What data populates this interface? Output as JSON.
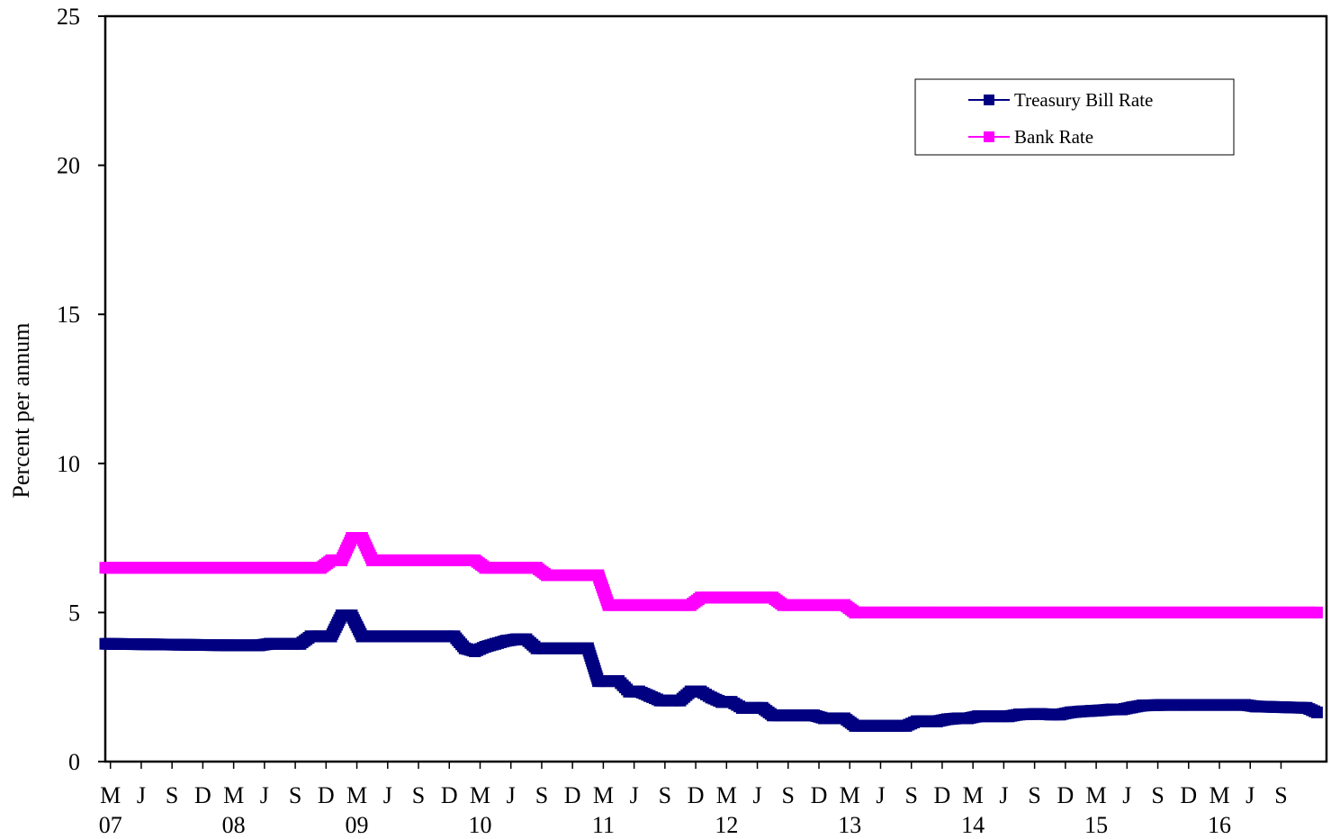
{
  "chart_data": {
    "type": "line",
    "title": "",
    "xlabel": "",
    "ylabel": "Percent per annum",
    "ylim": [
      0,
      25
    ],
    "yticks": [
      0,
      5,
      10,
      15,
      20,
      25
    ],
    "x_range": [
      "2007-03",
      "2016-12"
    ],
    "x_tick_month_labels": [
      "M",
      "J",
      "S",
      "D",
      "M",
      "J",
      "S",
      "D",
      "M",
      "J",
      "S",
      "D",
      "M",
      "J",
      "S",
      "D",
      "M",
      "J",
      "S",
      "D",
      "M",
      "J",
      "S",
      "D",
      "M",
      "J",
      "S",
      "D",
      "M",
      "J",
      "S",
      "D",
      "M",
      "J",
      "S",
      "D",
      "M",
      "J",
      "S"
    ],
    "x_tick_year_labels": [
      "07",
      "08",
      "09",
      "10",
      "11",
      "12",
      "13",
      "14",
      "15",
      "16"
    ],
    "grid": false,
    "legend_position": "top-right",
    "series": [
      {
        "name": "Treasury Bill Rate",
        "color": "#000080",
        "marker": "square",
        "points": [
          [
            "2007-03",
            3.95
          ],
          [
            "2008-03",
            3.9
          ],
          [
            "2008-06",
            3.9
          ],
          [
            "2008-07",
            3.95
          ],
          [
            "2008-10",
            3.95
          ],
          [
            "2008-11",
            4.2
          ],
          [
            "2009-01",
            4.2
          ],
          [
            "2009-02",
            4.9
          ],
          [
            "2009-03",
            4.9
          ],
          [
            "2009-04",
            4.2
          ],
          [
            "2010-01",
            4.2
          ],
          [
            "2010-02",
            3.8
          ],
          [
            "2010-03",
            3.7
          ],
          [
            "2010-04",
            3.85
          ],
          [
            "2010-05",
            3.95
          ],
          [
            "2010-06",
            4.05
          ],
          [
            "2010-07",
            4.1
          ],
          [
            "2010-08",
            4.1
          ],
          [
            "2010-09",
            3.8
          ],
          [
            "2011-02",
            3.8
          ],
          [
            "2011-03",
            2.7
          ],
          [
            "2011-05",
            2.7
          ],
          [
            "2011-06",
            2.35
          ],
          [
            "2011-07",
            2.35
          ],
          [
            "2011-08",
            2.2
          ],
          [
            "2011-09",
            2.05
          ],
          [
            "2011-11",
            2.05
          ],
          [
            "2011-12",
            2.35
          ],
          [
            "2012-01",
            2.35
          ],
          [
            "2012-02",
            2.15
          ],
          [
            "2012-03",
            2.0
          ],
          [
            "2012-04",
            2.0
          ],
          [
            "2012-05",
            1.8
          ],
          [
            "2012-07",
            1.8
          ],
          [
            "2012-08",
            1.55
          ],
          [
            "2012-12",
            1.55
          ],
          [
            "2013-01",
            1.45
          ],
          [
            "2013-03",
            1.45
          ],
          [
            "2013-04",
            1.2
          ],
          [
            "2013-09",
            1.2
          ],
          [
            "2013-10",
            1.35
          ],
          [
            "2013-12",
            1.35
          ],
          [
            "2014-01",
            1.42
          ],
          [
            "2014-02",
            1.45
          ],
          [
            "2014-03",
            1.45
          ],
          [
            "2014-04",
            1.52
          ],
          [
            "2014-07",
            1.52
          ],
          [
            "2014-08",
            1.58
          ],
          [
            "2014-10",
            1.6
          ],
          [
            "2014-11",
            1.58
          ],
          [
            "2014-12",
            1.58
          ],
          [
            "2015-01",
            1.65
          ],
          [
            "2015-02",
            1.68
          ],
          [
            "2015-03",
            1.7
          ],
          [
            "2015-04",
            1.72
          ],
          [
            "2015-05",
            1.75
          ],
          [
            "2015-06",
            1.75
          ],
          [
            "2015-07",
            1.82
          ],
          [
            "2015-08",
            1.88
          ],
          [
            "2015-10",
            1.9
          ],
          [
            "2015-12",
            1.9
          ],
          [
            "2016-06",
            1.9
          ],
          [
            "2016-07",
            1.85
          ],
          [
            "2016-12",
            1.8
          ],
          [
            "2017-01",
            1.65
          ]
        ]
      },
      {
        "name": "Bank Rate",
        "color": "#ff00ff",
        "marker": "square",
        "points": [
          [
            "2007-03",
            6.5
          ],
          [
            "2008-12",
            6.5
          ],
          [
            "2009-01",
            6.75
          ],
          [
            "2009-02",
            6.75
          ],
          [
            "2009-03",
            7.5
          ],
          [
            "2009-04",
            7.5
          ],
          [
            "2009-05",
            6.75
          ],
          [
            "2010-03",
            6.75
          ],
          [
            "2010-04",
            6.5
          ],
          [
            "2010-09",
            6.5
          ],
          [
            "2010-10",
            6.25
          ],
          [
            "2011-03",
            6.25
          ],
          [
            "2011-04",
            5.25
          ],
          [
            "2011-12",
            5.25
          ],
          [
            "2012-01",
            5.5
          ],
          [
            "2012-08",
            5.5
          ],
          [
            "2012-09",
            5.25
          ],
          [
            "2013-03",
            5.25
          ],
          [
            "2013-04",
            5.0
          ],
          [
            "2017-01",
            5.0
          ]
        ]
      }
    ]
  }
}
